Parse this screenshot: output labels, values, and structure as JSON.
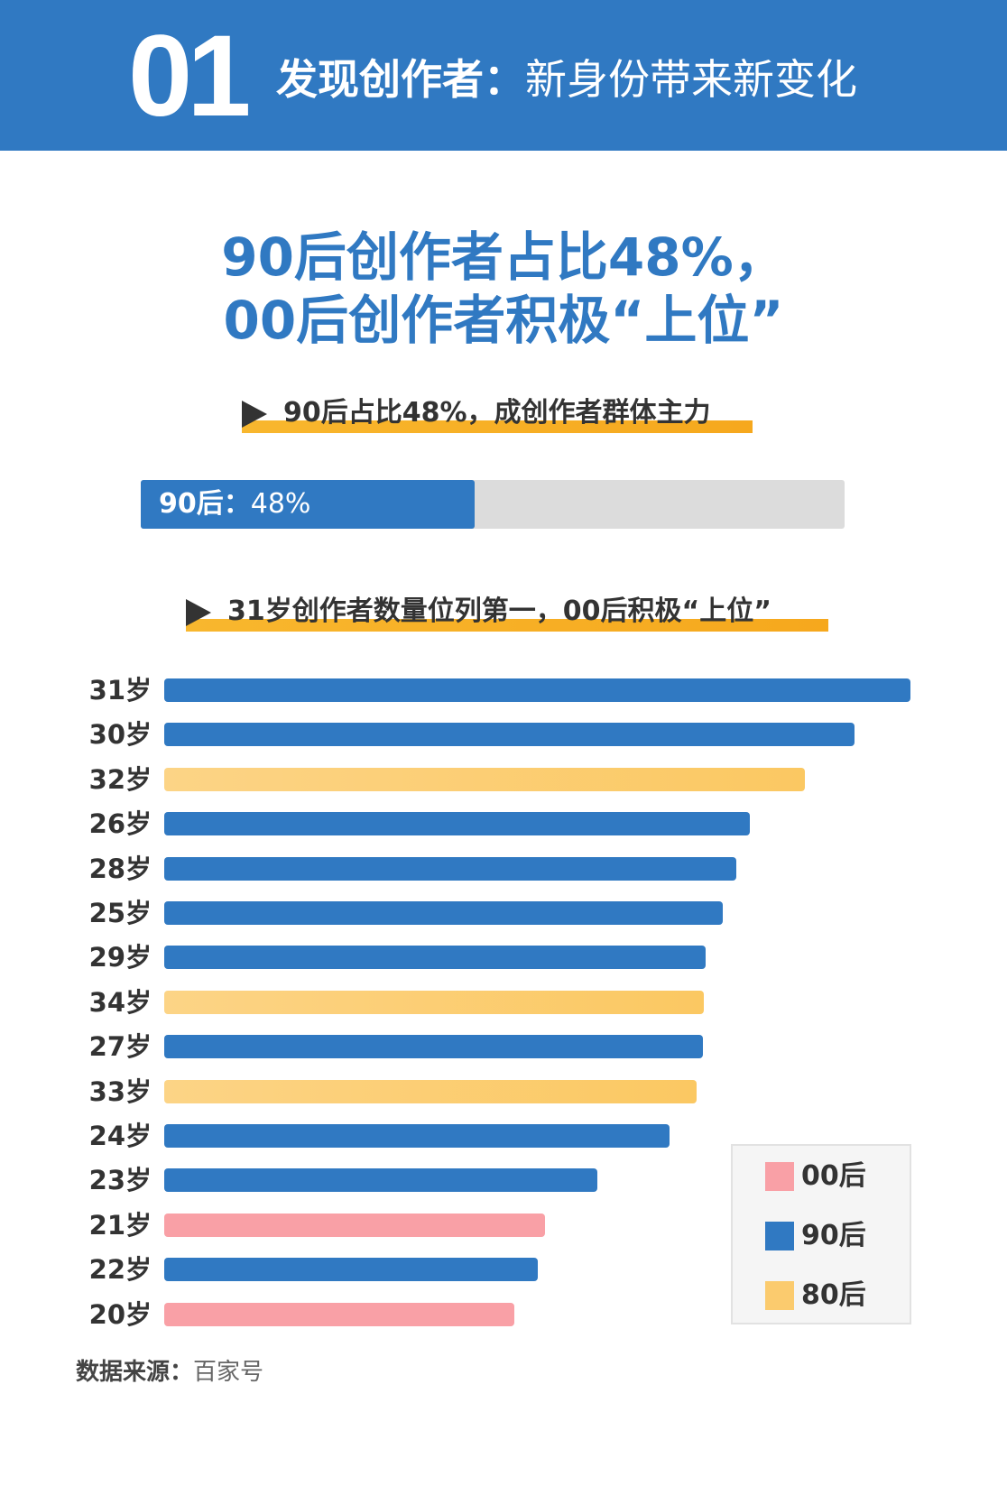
{
  "header": {
    "number": "01",
    "title_bold": "发现创作者：",
    "title_light": "新身份带来新变化"
  },
  "headline": {
    "line1": "90后创作者占比48%，",
    "line2": "00后创作者积极“上位”"
  },
  "section1": {
    "subtitle": "90后占比48%，成创作者群体主力",
    "progress_label": "90后：",
    "progress_value": "48%",
    "progress_percent": 48
  },
  "section2": {
    "subtitle": "31岁创作者数量位列第一，00后积极“上位”"
  },
  "colors": {
    "primary_blue": "#3079c2",
    "yellow_80s": "#fbcb6e",
    "pink_00s": "#f9a0a6",
    "highlight_orange": "#f7ae24",
    "track_gray": "#dcdcdc"
  },
  "chart_data": {
    "type": "bar",
    "orientation": "horizontal",
    "title": "31岁创作者数量位列第一，00后积极“上位”",
    "xlabel": "",
    "ylabel": "",
    "grid": false,
    "legend_position": "bottom-right",
    "categories": [
      "31岁",
      "30岁",
      "32岁",
      "26岁",
      "28岁",
      "25岁",
      "29岁",
      "34岁",
      "27岁",
      "33岁",
      "24岁",
      "23岁",
      "21岁",
      "22岁",
      "20岁"
    ],
    "values": [
      100,
      92.5,
      85.9,
      78.5,
      76.7,
      74.9,
      72.6,
      72.3,
      72.2,
      71.3,
      67.7,
      58.0,
      51.0,
      50.1,
      46.9
    ],
    "groups": [
      "90后",
      "90后",
      "80后",
      "90后",
      "90后",
      "90后",
      "90后",
      "80后",
      "90后",
      "80后",
      "90后",
      "90后",
      "00后",
      "90后",
      "00后"
    ],
    "value_note": "relative bar length, longest (31岁) = 100; no axis values shown",
    "legend": [
      {
        "name": "00后",
        "color": "#f9a0a6"
      },
      {
        "name": "90后",
        "color": "#3079c2"
      },
      {
        "name": "80后",
        "color": "#fbcb6e"
      }
    ]
  },
  "source": {
    "label": "数据来源：",
    "value": "百家号"
  }
}
